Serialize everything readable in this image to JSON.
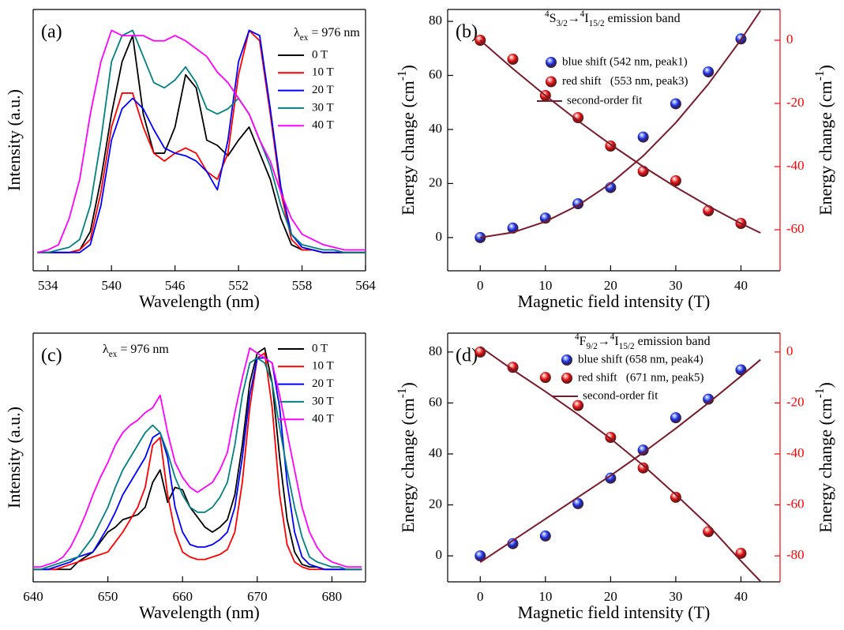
{
  "chart_data": [
    {
      "type": "line",
      "panel_label": "(a)",
      "xlabel": "Wavelength (nm)",
      "ylabel": "Intensity (a.u.)",
      "annotation": [
        "λ",
        {
          "text": "ex",
          "shift": "sub"
        },
        " = 976 nm"
      ],
      "xlim": [
        532.6,
        564
      ],
      "xticks": [
        534,
        540,
        546,
        552,
        558,
        564
      ],
      "ylim": [
        0,
        1
      ],
      "x": [
        533,
        534,
        535,
        536,
        537,
        538,
        539,
        540,
        541,
        542,
        543,
        544,
        545,
        546,
        547,
        548,
        549,
        550,
        551,
        552,
        553,
        554,
        555,
        556,
        557,
        558,
        559,
        560,
        561,
        562,
        563,
        564
      ],
      "series": [
        {
          "name": "0 T",
          "color": "#000000",
          "values": [
            0.07,
            0.07,
            0.07,
            0.07,
            0.08,
            0.15,
            0.35,
            0.6,
            0.8,
            0.9,
            0.6,
            0.45,
            0.45,
            0.55,
            0.75,
            0.7,
            0.5,
            0.48,
            0.44,
            0.5,
            0.55,
            0.45,
            0.35,
            0.2,
            0.1,
            0.08,
            0.08,
            0.07,
            0.07,
            0.07,
            0.07,
            0.07
          ]
        },
        {
          "name": "10 T",
          "color": "#ff0000",
          "values": [
            0.07,
            0.07,
            0.07,
            0.07,
            0.08,
            0.12,
            0.3,
            0.55,
            0.68,
            0.68,
            0.55,
            0.45,
            0.42,
            0.45,
            0.47,
            0.45,
            0.38,
            0.35,
            0.45,
            0.75,
            0.92,
            0.88,
            0.6,
            0.3,
            0.12,
            0.08,
            0.08,
            0.07,
            0.07,
            0.07,
            0.07,
            0.07
          ]
        },
        {
          "name": "20 T",
          "color": "#0000ff",
          "values": [
            0.07,
            0.07,
            0.07,
            0.07,
            0.07,
            0.1,
            0.25,
            0.5,
            0.62,
            0.66,
            0.62,
            0.54,
            0.47,
            0.45,
            0.44,
            0.42,
            0.38,
            0.31,
            0.5,
            0.8,
            0.92,
            0.9,
            0.62,
            0.32,
            0.14,
            0.09,
            0.08,
            0.07,
            0.07,
            0.07,
            0.07,
            0.07
          ]
        },
        {
          "name": "30 T",
          "color": "#008080",
          "values": [
            0.07,
            0.07,
            0.08,
            0.09,
            0.12,
            0.25,
            0.5,
            0.8,
            0.9,
            0.92,
            0.82,
            0.72,
            0.7,
            0.73,
            0.78,
            0.72,
            0.62,
            0.6,
            0.62,
            0.66,
            0.6,
            0.5,
            0.4,
            0.25,
            0.14,
            0.1,
            0.09,
            0.08,
            0.08,
            0.07,
            0.07,
            0.07
          ]
        },
        {
          "name": "40 T",
          "color": "#ff00ff",
          "values": [
            0.07,
            0.08,
            0.1,
            0.2,
            0.35,
            0.6,
            0.8,
            0.92,
            0.9,
            0.9,
            0.9,
            0.88,
            0.88,
            0.9,
            0.88,
            0.85,
            0.82,
            0.76,
            0.72,
            0.66,
            0.6,
            0.5,
            0.42,
            0.3,
            0.2,
            0.14,
            0.12,
            0.1,
            0.09,
            0.08,
            0.08,
            0.08
          ]
        }
      ]
    },
    {
      "type": "scatter",
      "panel_label": "(b)",
      "xlabel": "Magnetic field intensity (T)",
      "ylabel": [
        "Energy change (cm",
        {
          "text": "-1",
          "shift": "super"
        },
        ")"
      ],
      "y2label": [
        "Energy change (cm",
        {
          "text": "-1",
          "shift": "super"
        },
        ")"
      ],
      "annotation": [
        {
          "text": "4",
          "shift": "super"
        },
        "S",
        {
          "text": "3/2",
          "shift": "sub"
        },
        "→",
        {
          "text": "4",
          "shift": "super"
        },
        "I",
        {
          "text": "15/2",
          "shift": "sub"
        },
        " emission band"
      ],
      "xlim": [
        -5,
        46
      ],
      "xticks": [
        0,
        10,
        20,
        30,
        40
      ],
      "ylim": [
        -12.3,
        84.4
      ],
      "yticks": [
        0,
        20,
        40,
        60,
        80
      ],
      "y2lim": [
        -73,
        9.75
      ],
      "y2ticks": [
        0,
        -20,
        -40,
        -60
      ],
      "y2_color": "#ff0000",
      "series": [
        {
          "name": "blue shift (542 nm, peak1)",
          "color": "#1530e0",
          "mode": "markers",
          "x": [
            0,
            5,
            10,
            15,
            20,
            25,
            30,
            35,
            40
          ],
          "values": [
            0,
            3.5,
            7.2,
            12.5,
            18.5,
            37.2,
            49.5,
            61.3,
            73.5
          ]
        },
        {
          "name": "red shift   (553 nm, peak3)",
          "color": "#e01010",
          "mode": "markers",
          "axis": "y2",
          "x": [
            0,
            5,
            10,
            15,
            20,
            25,
            30,
            35,
            40
          ],
          "values": [
            0,
            -6,
            -17.5,
            -24.5,
            -33.5,
            -41.5,
            -44.5,
            -54,
            -58
          ]
        },
        {
          "name": "second-order fit",
          "color": "#7a1a2a",
          "mode": "line",
          "x": [
            0,
            5,
            10,
            15,
            20,
            25,
            30,
            35,
            40,
            43
          ],
          "values": [
            0,
            1.9,
            5.9,
            11.9,
            20,
            30.2,
            42.5,
            56.8,
            73.2,
            84
          ]
        },
        {
          "color": "#7a1a2a",
          "mode": "line",
          "axis": "y2",
          "x": [
            0,
            5,
            10,
            15,
            20,
            25,
            30,
            35,
            40,
            43
          ],
          "values": [
            0,
            -9,
            -17.5,
            -25.5,
            -33,
            -40,
            -46.5,
            -52.5,
            -58,
            -61
          ]
        }
      ]
    },
    {
      "type": "line",
      "panel_label": "(c)",
      "xlabel": "Wavelength (nm)",
      "ylabel": "Intensity (a.u.)",
      "annotation": [
        "λ",
        {
          "text": "ex",
          "shift": "sub"
        },
        " = 976 nm"
      ],
      "xlim": [
        640,
        684.5
      ],
      "xticks": [
        640,
        650,
        660,
        670,
        680
      ],
      "ylim": [
        0,
        1
      ],
      "x": [
        640,
        641,
        642,
        643,
        644,
        645,
        646,
        647,
        648,
        649,
        650,
        651,
        652,
        653,
        654,
        655,
        656,
        657,
        658,
        659,
        660,
        661,
        662,
        663,
        664,
        665,
        666,
        667,
        668,
        669,
        670,
        671,
        672,
        673,
        674,
        675,
        676,
        677,
        678,
        679,
        680,
        681,
        682,
        683,
        684
      ],
      "series": [
        {
          "name": "0 T",
          "color": "#000000",
          "values": [
            0.05,
            0.05,
            0.05,
            0.05,
            0.05,
            0.05,
            0.08,
            0.1,
            0.12,
            0.16,
            0.2,
            0.22,
            0.25,
            0.26,
            0.27,
            0.3,
            0.4,
            0.45,
            0.32,
            0.38,
            0.37,
            0.3,
            0.26,
            0.22,
            0.2,
            0.22,
            0.25,
            0.35,
            0.55,
            0.8,
            0.92,
            0.94,
            0.8,
            0.5,
            0.25,
            0.12,
            0.07,
            0.06,
            0.06,
            0.05,
            0.05,
            0.05,
            0.05,
            0.05,
            0.05
          ]
        },
        {
          "name": "10 T",
          "color": "#ff0000",
          "values": [
            0.05,
            0.05,
            0.05,
            0.05,
            0.06,
            0.07,
            0.08,
            0.09,
            0.1,
            0.11,
            0.12,
            0.16,
            0.2,
            0.25,
            0.3,
            0.38,
            0.55,
            0.58,
            0.35,
            0.2,
            0.12,
            0.1,
            0.09,
            0.09,
            0.1,
            0.11,
            0.13,
            0.2,
            0.4,
            0.7,
            0.9,
            0.92,
            0.7,
            0.35,
            0.15,
            0.08,
            0.06,
            0.05,
            0.05,
            0.05,
            0.05,
            0.05,
            0.05,
            0.05,
            0.05
          ]
        },
        {
          "name": "20 T",
          "color": "#0000ff",
          "values": [
            0.05,
            0.05,
            0.05,
            0.06,
            0.07,
            0.08,
            0.1,
            0.11,
            0.12,
            0.17,
            0.22,
            0.28,
            0.35,
            0.4,
            0.45,
            0.5,
            0.58,
            0.6,
            0.5,
            0.3,
            0.2,
            0.15,
            0.14,
            0.14,
            0.15,
            0.17,
            0.2,
            0.3,
            0.5,
            0.75,
            0.9,
            0.9,
            0.88,
            0.7,
            0.4,
            0.2,
            0.1,
            0.07,
            0.06,
            0.05,
            0.05,
            0.05,
            0.05,
            0.05,
            0.05
          ]
        },
        {
          "name": "30 T",
          "color": "#008080",
          "values": [
            0.05,
            0.05,
            0.06,
            0.07,
            0.08,
            0.09,
            0.1,
            0.14,
            0.18,
            0.24,
            0.3,
            0.38,
            0.45,
            0.5,
            0.55,
            0.6,
            0.63,
            0.6,
            0.52,
            0.42,
            0.35,
            0.3,
            0.28,
            0.28,
            0.3,
            0.34,
            0.4,
            0.55,
            0.75,
            0.88,
            0.9,
            0.88,
            0.8,
            0.62,
            0.45,
            0.3,
            0.18,
            0.1,
            0.08,
            0.07,
            0.06,
            0.06,
            0.05,
            0.05,
            0.05
          ]
        },
        {
          "name": "40 T",
          "color": "#ff00ff",
          "values": [
            0.06,
            0.06,
            0.07,
            0.08,
            0.1,
            0.14,
            0.2,
            0.27,
            0.35,
            0.42,
            0.48,
            0.55,
            0.6,
            0.63,
            0.65,
            0.68,
            0.7,
            0.75,
            0.6,
            0.48,
            0.42,
            0.38,
            0.36,
            0.38,
            0.4,
            0.45,
            0.52,
            0.68,
            0.82,
            0.94,
            0.92,
            0.9,
            0.88,
            0.75,
            0.6,
            0.45,
            0.3,
            0.2,
            0.14,
            0.1,
            0.08,
            0.07,
            0.06,
            0.06,
            0.06
          ]
        }
      ]
    },
    {
      "type": "scatter",
      "panel_label": "(d)",
      "xlabel": "Magnetic field intensity (T)",
      "ylabel": [
        "Energy change (cm",
        {
          "text": "-1",
          "shift": "super"
        },
        ")"
      ],
      "y2label": [
        "Energy change (cm",
        {
          "text": "-1",
          "shift": "super"
        },
        ")"
      ],
      "annotation": [
        {
          "text": "4",
          "shift": "super"
        },
        "F",
        {
          "text": "9/2",
          "shift": "sub"
        },
        "→",
        {
          "text": "4",
          "shift": "super"
        },
        "I",
        {
          "text": "15/2",
          "shift": "sub"
        },
        " emission band"
      ],
      "xlim": [
        -5,
        46
      ],
      "xticks": [
        0,
        10,
        20,
        30,
        40
      ],
      "ylim": [
        -10.2,
        87.4
      ],
      "yticks": [
        0,
        20,
        40,
        60,
        80
      ],
      "y2lim": [
        -90.2,
        7.4
      ],
      "y2ticks": [
        0,
        -20,
        -40,
        -60,
        -80
      ],
      "y2_color": "#ff0000",
      "series": [
        {
          "name": "blue shift (658 nm, peak4)",
          "color": "#1530e0",
          "mode": "markers",
          "x": [
            0,
            5,
            10,
            15,
            20,
            25,
            30,
            35,
            40
          ],
          "values": [
            0,
            4.8,
            7.8,
            20.5,
            30.5,
            41.5,
            54.2,
            61.5,
            73
          ]
        },
        {
          "name": "red shift   (671 nm, peak5)",
          "color": "#e01010",
          "mode": "markers",
          "axis": "y2",
          "x": [
            0,
            5,
            10,
            15,
            20,
            25,
            30,
            35,
            40
          ],
          "values": [
            0,
            -6,
            -10,
            -21,
            -33.5,
            -45.5,
            -57,
            -70.5,
            -79
          ]
        },
        {
          "name": "second-order fit",
          "color": "#7a1a2a",
          "mode": "line",
          "x": [
            0,
            5,
            10,
            15,
            20,
            25,
            30,
            35,
            40,
            43
          ],
          "values": [
            -2.5,
            6,
            14.5,
            23,
            31.5,
            40.5,
            50,
            60,
            70.5,
            77
          ]
        },
        {
          "color": "#7a1a2a",
          "mode": "line",
          "axis": "y2",
          "x": [
            0,
            5,
            10,
            15,
            20,
            25,
            30,
            35,
            40,
            43
          ],
          "values": [
            2,
            -7,
            -15.5,
            -24.5,
            -34,
            -44.5,
            -56,
            -68,
            -82,
            -90
          ]
        }
      ]
    }
  ]
}
